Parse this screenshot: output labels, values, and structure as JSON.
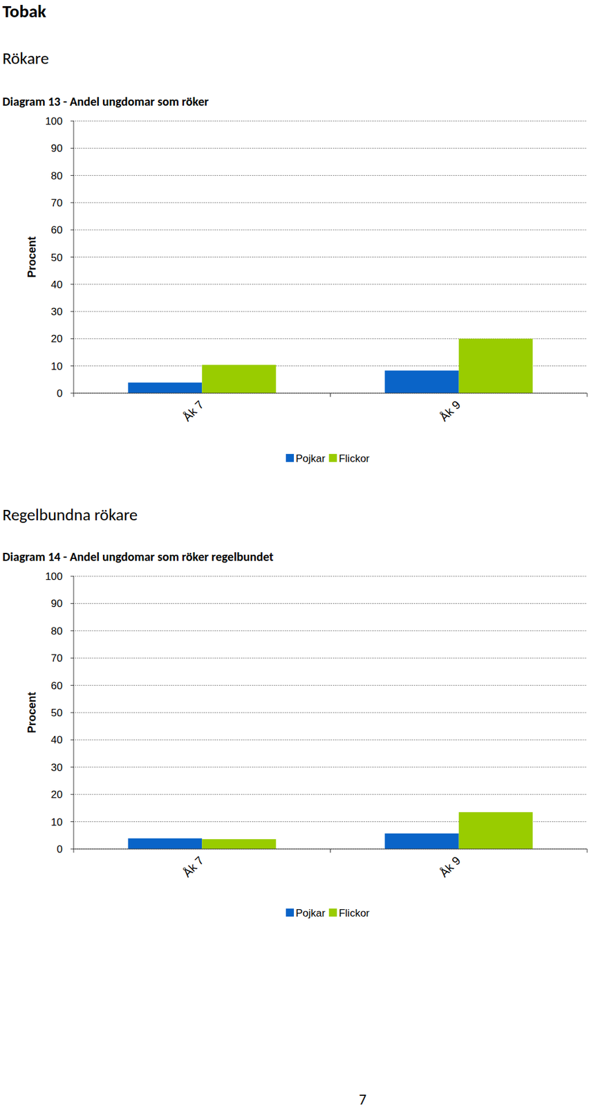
{
  "page": {
    "heading": "Tobak",
    "sections": [
      "Rökare",
      "Regelbundna rökare"
    ],
    "page_number": 7
  },
  "chart_data": [
    {
      "type": "bar",
      "title": "Diagram 13 - Andel ungdomar som röker",
      "y_label": "Procent",
      "categories": [
        "Åk 7",
        "Åk 9"
      ],
      "series": [
        {
          "name": "Pojkar",
          "color": "#0a64c8",
          "values": [
            3.9,
            8.3
          ]
        },
        {
          "name": "Flickor",
          "color": "#99cc00",
          "values": [
            10.4,
            20
          ]
        }
      ],
      "ylim": [
        0,
        100
      ],
      "yticks": [
        0,
        10,
        20,
        30,
        40,
        50,
        60,
        70,
        80,
        90,
        100
      ],
      "grid": true,
      "legend": "bottom"
    },
    {
      "type": "bar",
      "title": "Diagram 14 - Andel ungdomar som röker regelbundet",
      "y_label": "Procent",
      "categories": [
        "Åk 7",
        "Åk 9"
      ],
      "series": [
        {
          "name": "Pojkar",
          "color": "#0a64c8",
          "values": [
            3.9,
            5.7
          ]
        },
        {
          "name": "Flickor",
          "color": "#99cc00",
          "values": [
            3.6,
            13.5
          ]
        }
      ],
      "ylim": [
        0,
        100
      ],
      "yticks": [
        0,
        10,
        20,
        30,
        40,
        50,
        60,
        70,
        80,
        90,
        100
      ],
      "grid": true,
      "legend": "bottom"
    }
  ]
}
